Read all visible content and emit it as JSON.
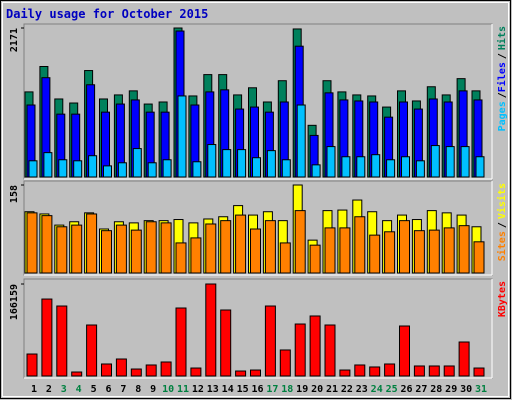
{
  "chart_data": [
    {
      "type": "bar",
      "title": "Daily usage for October 2015",
      "legend_separator": "/",
      "ylim": [
        0,
        2171
      ],
      "yticks": [
        2171
      ],
      "series": [
        {
          "name": "Hits",
          "color": "#00805c",
          "values": [
            1240,
            1610,
            1137,
            1078,
            1551,
            1137,
            1196,
            1255,
            1063,
            1093,
            2171,
            1181,
            1492,
            1492,
            1196,
            1300,
            1093,
            1403,
            2157,
            753,
            1403,
            1240,
            1196,
            1181,
            1019,
            1255,
            1108,
            1315,
            1196,
            1433,
            1255
          ]
        },
        {
          "name": "Files",
          "color": "#0000ff",
          "values": [
            1049,
            1447,
            916,
            916,
            1344,
            945,
            1063,
            1123,
            945,
            945,
            2127,
            1049,
            1240,
            1270,
            990,
            1019,
            945,
            1093,
            1906,
            606,
            1226,
            1123,
            1108,
            1093,
            872,
            1093,
            990,
            1137,
            1093,
            1255,
            1123
          ]
        },
        {
          "name": "Pages",
          "color": "#00c0ff",
          "values": [
            236,
            355,
            251,
            236,
            310,
            162,
            207,
            414,
            207,
            251,
            1181,
            222,
            473,
            399,
            399,
            281,
            384,
            251,
            1049,
            177,
            443,
            295,
            295,
            325,
            251,
            295,
            236,
            458,
            443,
            443,
            295
          ]
        }
      ]
    },
    {
      "type": "bar",
      "legend_separator": "/",
      "ylim": [
        0,
        158
      ],
      "yticks": [
        158
      ],
      "series": [
        {
          "name": "Visits",
          "color": "#ffff00",
          "values": [
            110,
            106,
            86,
            92,
            108,
            79,
            92,
            90,
            94,
            94,
            96,
            90,
            97,
            101,
            121,
            104,
            110,
            94,
            158,
            59,
            112,
            113,
            131,
            110,
            94,
            104,
            96,
            112,
            108,
            104,
            83
          ]
        },
        {
          "name": "Sites",
          "color": "#ff8000",
          "values": [
            108,
            103,
            83,
            86,
            106,
            76,
            86,
            77,
            92,
            90,
            54,
            63,
            88,
            94,
            104,
            79,
            94,
            54,
            112,
            50,
            81,
            81,
            101,
            68,
            74,
            94,
            76,
            77,
            81,
            85,
            56
          ]
        }
      ]
    },
    {
      "type": "bar",
      "ylim": [
        0,
        166159
      ],
      "yticks": [
        166159
      ],
      "categories": [
        "1",
        "2",
        "3",
        "4",
        "5",
        "6",
        "7",
        "8",
        "9",
        "10",
        "11",
        "12",
        "13",
        "14",
        "15",
        "16",
        "17",
        "18",
        "19",
        "20",
        "21",
        "22",
        "23",
        "24",
        "25",
        "26",
        "27",
        "28",
        "29",
        "30",
        "31"
      ],
      "category_colors": [
        "#000000",
        "#000000",
        "#008040",
        "#008040",
        "#000000",
        "#000000",
        "#000000",
        "#000000",
        "#000000",
        "#008040",
        "#008040",
        "#000000",
        "#000000",
        "#000000",
        "#000000",
        "#000000",
        "#008040",
        "#008040",
        "#000000",
        "#000000",
        "#000000",
        "#000000",
        "#000000",
        "#008040",
        "#008040",
        "#000000",
        "#000000",
        "#000000",
        "#000000",
        "#000000",
        "#008040"
      ],
      "series": [
        {
          "name": "KBytes",
          "color": "#ff0000",
          "values": [
            39700,
            139000,
            126400,
            7200,
            92100,
            21700,
            30700,
            12600,
            19900,
            25300,
            122800,
            14400,
            166159,
            119200,
            9000,
            10800,
            126400,
            47000,
            93900,
            108400,
            92100,
            10800,
            19900,
            16300,
            21700,
            90300,
            18100,
            18100,
            18100,
            61400,
            14400
          ]
        }
      ]
    }
  ]
}
